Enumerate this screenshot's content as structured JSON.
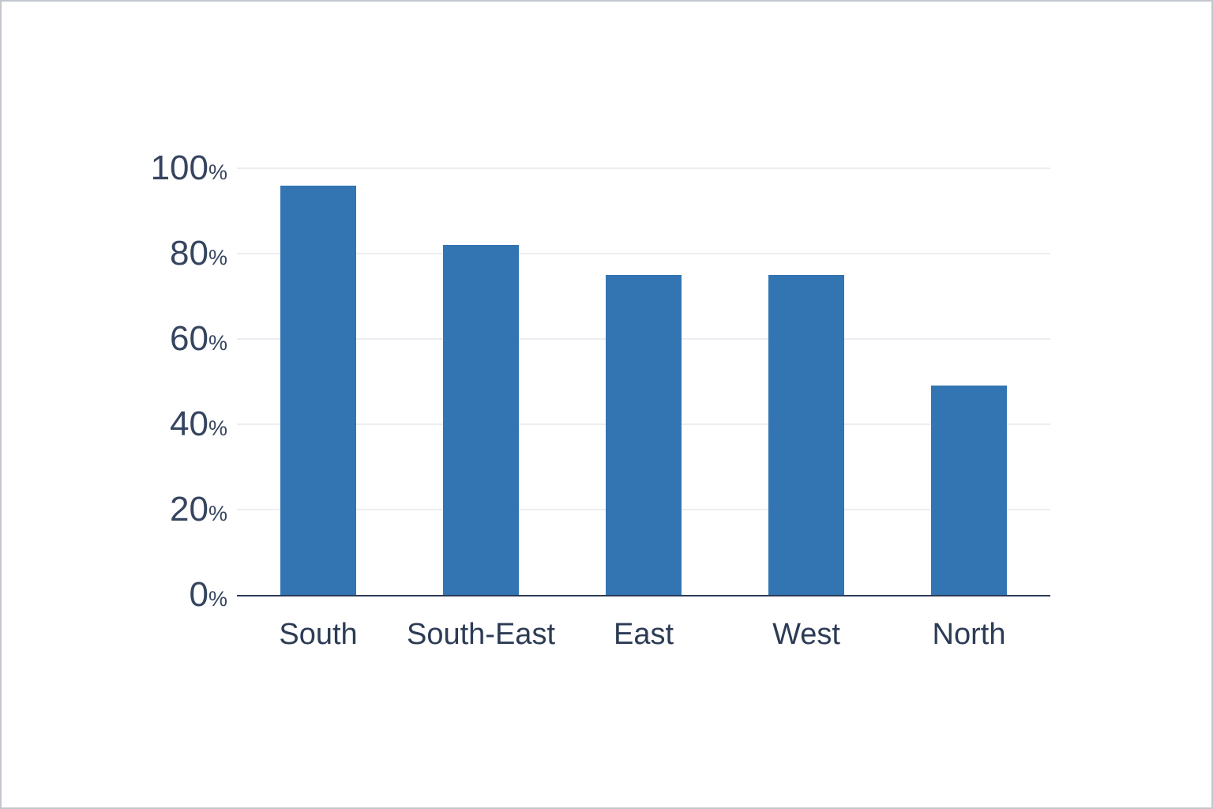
{
  "chart_data": {
    "type": "bar",
    "categories": [
      "South",
      "South-East",
      "East",
      "West",
      "North"
    ],
    "values": [
      96,
      82,
      75,
      75,
      49
    ],
    "title": "",
    "xlabel": "",
    "ylabel": "",
    "ylim": [
      0,
      100
    ],
    "yticks": [
      0,
      20,
      40,
      60,
      80,
      100
    ],
    "ytick_suffix": "%",
    "grid": true,
    "legend": "none",
    "bar_color": "#3375b2"
  },
  "colors": {
    "bar": "#3375b2",
    "axis": "#2c3a57",
    "gridline": "#ecedf0",
    "tick_text": "#36455f",
    "category_text": "#2d3c55",
    "background": "#ffffff",
    "frame_border": "#c3c7cd"
  }
}
